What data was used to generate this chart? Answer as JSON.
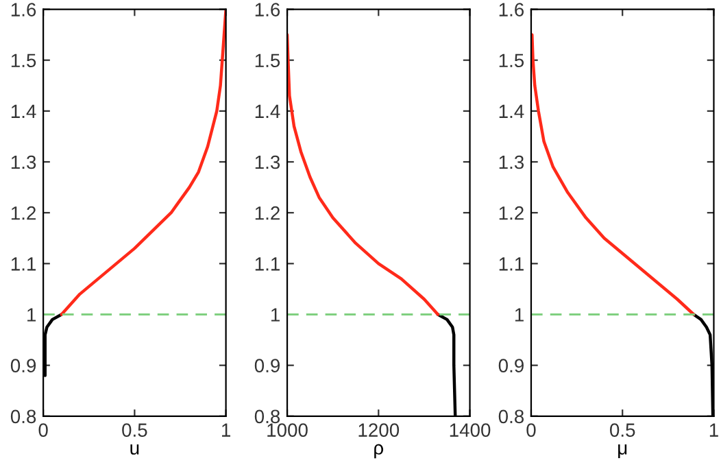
{
  "chart_data": [
    {
      "type": "line",
      "xlabel": "u",
      "xlim": [
        0,
        1
      ],
      "xticks": [
        0,
        0.5,
        1
      ],
      "ylim": [
        0.8,
        1.6
      ],
      "yticks": [
        0.8,
        0.9,
        1,
        1.1,
        1.2,
        1.3,
        1.4,
        1.5,
        1.6
      ],
      "grid": false,
      "legend": false,
      "ref_lines": [
        {
          "axis": "y",
          "value": 1,
          "label": null,
          "color": "#80d080",
          "line_style": "dashed"
        }
      ],
      "series": [
        {
          "color": "#000000",
          "x": [
            0.01,
            0.01,
            0.02,
            0.05,
            0.1
          ],
          "values": [
            0.88,
            0.96,
            0.975,
            0.99,
            1.0
          ]
        },
        {
          "color": "#ff2a1a",
          "x": [
            0.1,
            0.2,
            0.3,
            0.4,
            0.5,
            0.6,
            0.7,
            0.8,
            0.85,
            0.9,
            0.95,
            0.97,
            0.98,
            0.99,
            1.0
          ],
          "values": [
            1.0,
            1.04,
            1.07,
            1.1,
            1.13,
            1.165,
            1.2,
            1.25,
            1.28,
            1.33,
            1.4,
            1.45,
            1.5,
            1.55,
            1.6
          ]
        }
      ]
    },
    {
      "type": "line",
      "xlabel": "ρ",
      "xlim": [
        1000,
        1400
      ],
      "xticks": [
        1000,
        1200,
        1400
      ],
      "ylim": [
        0.8,
        1.6
      ],
      "yticks": [
        0.8,
        0.9,
        1,
        1.1,
        1.2,
        1.3,
        1.4,
        1.5,
        1.6
      ],
      "grid": false,
      "legend": false,
      "ref_lines": [
        {
          "axis": "y",
          "value": 1,
          "label": null,
          "color": "#80d080",
          "line_style": "dashed"
        }
      ],
      "series": [
        {
          "color": "#000000",
          "x": [
            1368,
            1365,
            1365,
            1362,
            1350,
            1330
          ],
          "values": [
            0.8,
            0.9,
            0.96,
            0.975,
            0.99,
            1.0
          ]
        },
        {
          "color": "#ff2a1a",
          "x": [
            1330,
            1300,
            1250,
            1200,
            1150,
            1100,
            1070,
            1050,
            1030,
            1015,
            1005,
            1002,
            1000
          ],
          "values": [
            1.0,
            1.03,
            1.07,
            1.1,
            1.14,
            1.19,
            1.23,
            1.27,
            1.32,
            1.37,
            1.43,
            1.5,
            1.55
          ]
        }
      ]
    },
    {
      "type": "line",
      "xlabel": "μ",
      "xlim": [
        0,
        1
      ],
      "xticks": [
        0,
        0.5,
        1
      ],
      "ylim": [
        0.8,
        1.6
      ],
      "yticks": [
        0.8,
        0.9,
        1,
        1.1,
        1.2,
        1.3,
        1.4,
        1.5,
        1.6
      ],
      "grid": false,
      "legend": false,
      "ref_lines": [
        {
          "axis": "y",
          "value": 1,
          "label": null,
          "color": "#80d080",
          "line_style": "dashed"
        }
      ],
      "series": [
        {
          "color": "#000000",
          "x": [
            0.995,
            0.99,
            0.98,
            0.96,
            0.93,
            0.89
          ],
          "values": [
            0.8,
            0.9,
            0.96,
            0.975,
            0.99,
            1.0
          ]
        },
        {
          "color": "#ff2a1a",
          "x": [
            0.89,
            0.8,
            0.7,
            0.6,
            0.5,
            0.4,
            0.3,
            0.2,
            0.12,
            0.07,
            0.04,
            0.02,
            0.01,
            0.005
          ],
          "values": [
            1.0,
            1.03,
            1.06,
            1.09,
            1.12,
            1.15,
            1.19,
            1.24,
            1.29,
            1.34,
            1.4,
            1.45,
            1.5,
            1.55
          ]
        }
      ]
    }
  ]
}
